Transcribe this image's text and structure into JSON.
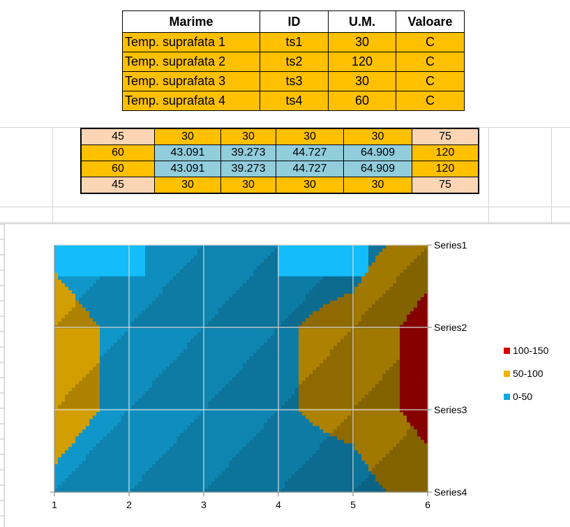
{
  "param_table": {
    "headers": [
      "Marime",
      "ID",
      "U.M.",
      "Valoare"
    ],
    "rows": [
      [
        "Temp. suprafata 1",
        "ts1",
        "30",
        "C"
      ],
      [
        "Temp. suprafata 2",
        "ts2",
        "120",
        "C"
      ],
      [
        "Temp. suprafata 3",
        "ts3",
        "30",
        "C"
      ],
      [
        "Temp. suprafata 4",
        "ts4",
        "60",
        "C"
      ]
    ]
  },
  "data_grid": {
    "rows": [
      [
        "45",
        "30",
        "30",
        "30",
        "30",
        "75"
      ],
      [
        "60",
        "43.091",
        "39.273",
        "44.727",
        "64.909",
        "120"
      ],
      [
        "60",
        "43.091",
        "39.273",
        "44.727",
        "64.909",
        "120"
      ],
      [
        "45",
        "30",
        "30",
        "30",
        "30",
        "75"
      ]
    ]
  },
  "chart_data": {
    "type": "heatmap",
    "subtype": "surface-contour",
    "x": [
      1,
      2,
      3,
      4,
      5,
      6
    ],
    "series": [
      {
        "name": "Series1",
        "values": [
          45,
          30,
          30,
          30,
          30,
          75
        ]
      },
      {
        "name": "Series2",
        "values": [
          60,
          43.091,
          39.273,
          44.727,
          64.909,
          120
        ]
      },
      {
        "name": "Series3",
        "values": [
          60,
          43.091,
          39.273,
          44.727,
          64.909,
          120
        ]
      },
      {
        "name": "Series4",
        "values": [
          45,
          30,
          30,
          30,
          30,
          75
        ]
      }
    ],
    "legend": [
      {
        "label": "100-150",
        "color": "#d90000"
      },
      {
        "label": "50-100",
        "color": "#f0b400"
      },
      {
        "label": "0-50",
        "color": "#12a8e0"
      }
    ],
    "legend_position": "right",
    "bands": [
      [
        0,
        50
      ],
      [
        50,
        100
      ],
      [
        100,
        150
      ]
    ],
    "grid": true
  }
}
